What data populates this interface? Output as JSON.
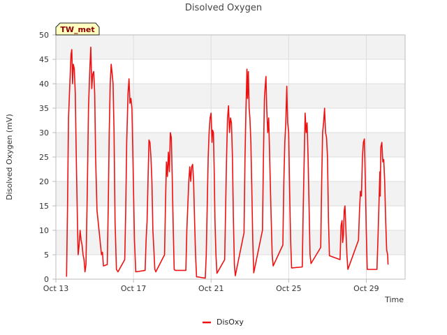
{
  "chart_data": {
    "type": "line",
    "title": "Disolved Oxygen",
    "station_label": "TW_met",
    "xlabel": "Time",
    "ylabel": "Disolved Oxygen (mV)",
    "xlim": [
      13.0,
      31.0
    ],
    "ylim": [
      0,
      50
    ],
    "yticks": [
      0,
      5,
      10,
      15,
      20,
      25,
      30,
      35,
      40,
      45,
      50
    ],
    "xticks": [
      {
        "value": 13,
        "label": "Oct 13"
      },
      {
        "value": 17,
        "label": "Oct 17"
      },
      {
        "value": 21,
        "label": "Oct 21"
      },
      {
        "value": 25,
        "label": "Oct 25"
      },
      {
        "value": 29,
        "label": "Oct 29"
      }
    ],
    "grid": true,
    "legend_position": "bottom-center",
    "colors": {
      "series": "#ee1111",
      "band": "#f2f2f2",
      "grid": "#dddddd",
      "axis": "#bbbbbb"
    },
    "series": [
      {
        "name": "DisOxy",
        "x_unit": "day of October",
        "points": [
          [
            13.55,
            0.5
          ],
          [
            13.6,
            15
          ],
          [
            13.65,
            33
          ],
          [
            13.72,
            40
          ],
          [
            13.78,
            46
          ],
          [
            13.82,
            47
          ],
          [
            13.86,
            40
          ],
          [
            13.9,
            44
          ],
          [
            13.95,
            43
          ],
          [
            14.0,
            38
          ],
          [
            14.05,
            25
          ],
          [
            14.12,
            10
          ],
          [
            14.15,
            5
          ],
          [
            14.2,
            7
          ],
          [
            14.25,
            10
          ],
          [
            14.3,
            8
          ],
          [
            14.35,
            7
          ],
          [
            14.4,
            5
          ],
          [
            14.45,
            4
          ],
          [
            14.5,
            1.5
          ],
          [
            14.55,
            3
          ],
          [
            14.62,
            18
          ],
          [
            14.68,
            35
          ],
          [
            14.75,
            43
          ],
          [
            14.8,
            47.5
          ],
          [
            14.85,
            39
          ],
          [
            14.9,
            42
          ],
          [
            14.95,
            42.5
          ],
          [
            15.0,
            38
          ],
          [
            15.05,
            25
          ],
          [
            15.12,
            14
          ],
          [
            15.2,
            11
          ],
          [
            15.3,
            7
          ],
          [
            15.35,
            5
          ],
          [
            15.4,
            5.5
          ],
          [
            15.45,
            2.7
          ],
          [
            15.65,
            3
          ],
          [
            15.7,
            15
          ],
          [
            15.75,
            30
          ],
          [
            15.8,
            40
          ],
          [
            15.85,
            44
          ],
          [
            15.9,
            42
          ],
          [
            15.95,
            40
          ],
          [
            16.0,
            30
          ],
          [
            16.05,
            12
          ],
          [
            16.12,
            2
          ],
          [
            16.2,
            1.5
          ],
          [
            16.55,
            4
          ],
          [
            16.6,
            14
          ],
          [
            16.65,
            28
          ],
          [
            16.72,
            38
          ],
          [
            16.77,
            41
          ],
          [
            16.82,
            36
          ],
          [
            16.87,
            37
          ],
          [
            16.92,
            35
          ],
          [
            16.97,
            25
          ],
          [
            17.05,
            8
          ],
          [
            17.12,
            1.5
          ],
          [
            17.6,
            1.8
          ],
          [
            17.65,
            8
          ],
          [
            17.7,
            12
          ],
          [
            17.75,
            20
          ],
          [
            17.8,
            28.5
          ],
          [
            17.85,
            28
          ],
          [
            17.9,
            25
          ],
          [
            17.95,
            20
          ],
          [
            18.0,
            10
          ],
          [
            18.1,
            2
          ],
          [
            18.15,
            1.5
          ],
          [
            18.6,
            5
          ],
          [
            18.65,
            15
          ],
          [
            18.7,
            24
          ],
          [
            18.75,
            21
          ],
          [
            18.8,
            26
          ],
          [
            18.85,
            22
          ],
          [
            18.9,
            30
          ],
          [
            18.95,
            29
          ],
          [
            19.0,
            20
          ],
          [
            19.05,
            10
          ],
          [
            19.1,
            2
          ],
          [
            19.15,
            1.8
          ],
          [
            19.7,
            1.8
          ],
          [
            19.75,
            10
          ],
          [
            19.8,
            15
          ],
          [
            19.85,
            20
          ],
          [
            19.9,
            23
          ],
          [
            19.95,
            20
          ],
          [
            20.0,
            23
          ],
          [
            20.05,
            23.5
          ],
          [
            20.1,
            20
          ],
          [
            20.15,
            12
          ],
          [
            20.2,
            5
          ],
          [
            20.25,
            0.5
          ],
          [
            20.7,
            0.2
          ],
          [
            20.75,
            5
          ],
          [
            20.8,
            15
          ],
          [
            20.85,
            25
          ],
          [
            20.9,
            30
          ],
          [
            20.95,
            33
          ],
          [
            21.0,
            34
          ],
          [
            21.05,
            28
          ],
          [
            21.08,
            30.5
          ],
          [
            21.12,
            30
          ],
          [
            21.16,
            22
          ],
          [
            21.2,
            12
          ],
          [
            21.25,
            5
          ],
          [
            21.3,
            1.2
          ],
          [
            21.7,
            4
          ],
          [
            21.75,
            15
          ],
          [
            21.8,
            25
          ],
          [
            21.85,
            33
          ],
          [
            21.9,
            35.5
          ],
          [
            21.95,
            30
          ],
          [
            22.0,
            33
          ],
          [
            22.05,
            32
          ],
          [
            22.1,
            25
          ],
          [
            22.15,
            12
          ],
          [
            22.2,
            3
          ],
          [
            22.25,
            0.7
          ],
          [
            22.7,
            9.5
          ],
          [
            22.75,
            25
          ],
          [
            22.8,
            35
          ],
          [
            22.85,
            43
          ],
          [
            22.88,
            37
          ],
          [
            22.92,
            42.5
          ],
          [
            22.96,
            35
          ],
          [
            23.0,
            33
          ],
          [
            23.05,
            28
          ],
          [
            23.1,
            18
          ],
          [
            23.15,
            8
          ],
          [
            23.2,
            1.3
          ],
          [
            23.65,
            10
          ],
          [
            23.7,
            25
          ],
          [
            23.75,
            37
          ],
          [
            23.8,
            40
          ],
          [
            23.83,
            41.5
          ],
          [
            23.87,
            35
          ],
          [
            23.92,
            30
          ],
          [
            23.97,
            33
          ],
          [
            24.0,
            28
          ],
          [
            24.08,
            15
          ],
          [
            24.15,
            5
          ],
          [
            24.2,
            2.7
          ],
          [
            24.7,
            7
          ],
          [
            24.75,
            20
          ],
          [
            24.8,
            28
          ],
          [
            24.85,
            32
          ],
          [
            24.9,
            39.5
          ],
          [
            24.95,
            32
          ],
          [
            25.0,
            30
          ],
          [
            25.05,
            18
          ],
          [
            25.1,
            8
          ],
          [
            25.15,
            2.3
          ],
          [
            25.7,
            2.5
          ],
          [
            25.75,
            15
          ],
          [
            25.8,
            25
          ],
          [
            25.85,
            34
          ],
          [
            25.9,
            30
          ],
          [
            25.95,
            32
          ],
          [
            26.0,
            25
          ],
          [
            26.05,
            15
          ],
          [
            26.1,
            5
          ],
          [
            26.15,
            3.2
          ],
          [
            26.65,
            6.5
          ],
          [
            26.7,
            20
          ],
          [
            26.75,
            30
          ],
          [
            26.8,
            32
          ],
          [
            26.85,
            35
          ],
          [
            26.9,
            30
          ],
          [
            26.95,
            29
          ],
          [
            27.0,
            25
          ],
          [
            27.05,
            12
          ],
          [
            27.1,
            4.8
          ],
          [
            27.65,
            4
          ],
          [
            27.7,
            11
          ],
          [
            27.75,
            12
          ],
          [
            27.78,
            7.5
          ],
          [
            27.82,
            9
          ],
          [
            27.86,
            14
          ],
          [
            27.9,
            15
          ],
          [
            27.95,
            10
          ],
          [
            28.0,
            5
          ],
          [
            28.05,
            2
          ],
          [
            28.6,
            8
          ],
          [
            28.65,
            14
          ],
          [
            28.7,
            18
          ],
          [
            28.75,
            17
          ],
          [
            28.8,
            25
          ],
          [
            28.85,
            28
          ],
          [
            28.9,
            28.7
          ],
          [
            28.95,
            20
          ],
          [
            29.0,
            10
          ],
          [
            29.05,
            2
          ],
          [
            29.55,
            2
          ],
          [
            29.6,
            8
          ],
          [
            29.65,
            15
          ],
          [
            29.7,
            22
          ],
          [
            29.72,
            17
          ],
          [
            29.75,
            27
          ],
          [
            29.8,
            28
          ],
          [
            29.85,
            24
          ],
          [
            29.9,
            24.5
          ],
          [
            29.95,
            20
          ],
          [
            30.0,
            12
          ],
          [
            30.05,
            6
          ],
          [
            30.1,
            5
          ],
          [
            30.12,
            3
          ]
        ]
      }
    ]
  }
}
